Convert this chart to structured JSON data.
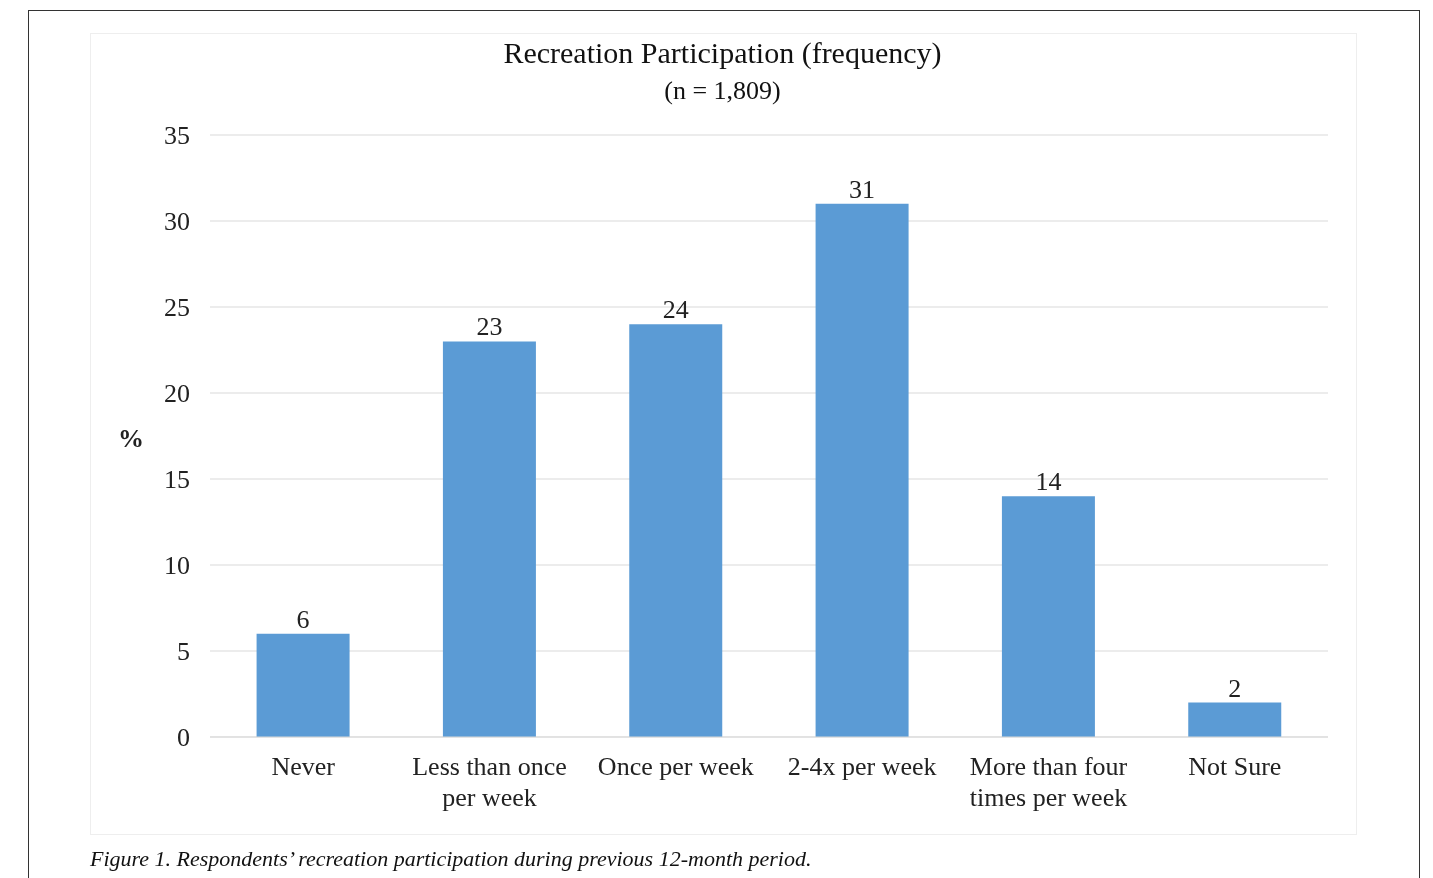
{
  "chart_data": {
    "type": "bar",
    "title": "Recreation Participation (frequency)",
    "subtitle": "(n = 1,809)",
    "ylabel": "%",
    "categories": [
      "Never",
      "Less than once per week",
      "Once per week",
      "2-4x per week",
      "More than four times per week",
      "Not Sure"
    ],
    "values": [
      6,
      23,
      24,
      31,
      14,
      2
    ],
    "color": "#5b9bd5",
    "ylim": [
      0,
      35
    ],
    "yticks": [
      0,
      5,
      10,
      15,
      20,
      25,
      30,
      35
    ],
    "grid": "y",
    "data_labels": true,
    "annotations": [
      "Figure 1. Respondents’ recreation participation during previous 12-month period."
    ]
  }
}
